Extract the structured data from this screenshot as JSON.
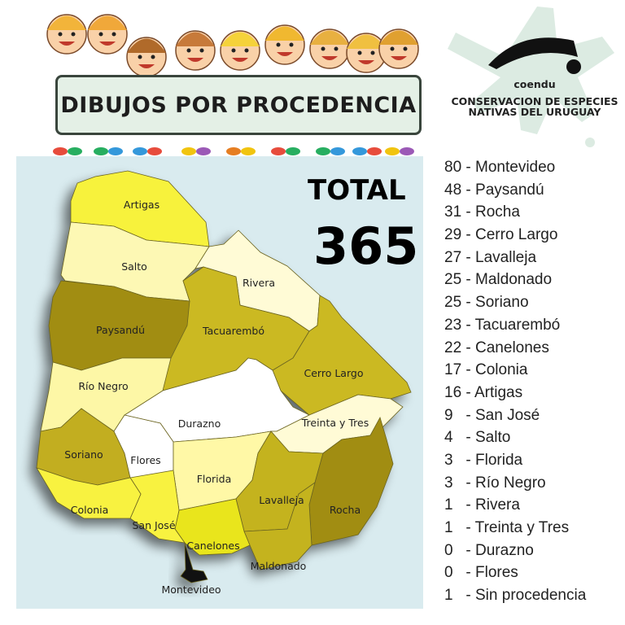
{
  "title": "DIBUJOS POR PROCEDENCIA",
  "logo": {
    "name": "coendu",
    "tagline_line1": "CONSERVACION DE ESPECIES",
    "tagline_line2": "NATIVAS DEL URUGUAY"
  },
  "total": {
    "label": "TOTAL",
    "value": "365"
  },
  "list": [
    "80 - Montevideo",
    "48 - Paysandú",
    "31 - Rocha",
    "29 - Cerro Largo",
    "27 - Lavalleja",
    "25 - Maldonado",
    "25 - Soriano",
    "23 - Tacuarembó",
    "22 - Canelones",
    "17 - Colonia",
    "16 - Artigas",
    "9   - San José",
    "4   - Salto",
    "3   - Florida",
    "3   - Río Negro",
    "1   - Rivera",
    "1   - Treinta y Tres",
    "0   - Durazno",
    "0   - Flores",
    "1   - Sin procedencia"
  ],
  "regions": [
    {
      "name": "Artigas",
      "count": 16,
      "color": "#f7f23c"
    },
    {
      "name": "Salto",
      "count": 4,
      "color": "#fdf8b4"
    },
    {
      "name": "Rivera",
      "count": 1,
      "color": "#fffbd6"
    },
    {
      "name": "Tacuarembó",
      "count": 23,
      "color": "#cbb922"
    },
    {
      "name": "Paysandú",
      "count": 48,
      "color": "#a18d12"
    },
    {
      "name": "Cerro Largo",
      "count": 29,
      "color": "#cbb922"
    },
    {
      "name": "Durazno",
      "count": 0,
      "color": "#ffffff"
    },
    {
      "name": "Río Negro",
      "count": 3,
      "color": "#fdf7a6"
    },
    {
      "name": "Treinta y Tres",
      "count": 1,
      "color": "#fffbd6"
    },
    {
      "name": "Soriano",
      "count": 25,
      "color": "#c2ae20"
    },
    {
      "name": "Flores",
      "count": 0,
      "color": "#ffffff"
    },
    {
      "name": "Florida",
      "count": 3,
      "color": "#fff8a6"
    },
    {
      "name": "Lavalleja",
      "count": 27,
      "color": "#c4b31e"
    },
    {
      "name": "Rocha",
      "count": 31,
      "color": "#a18d12"
    },
    {
      "name": "Maldonado",
      "count": 25,
      "color": "#c4b31e"
    },
    {
      "name": "Canelones",
      "count": 22,
      "color": "#e9e51c"
    },
    {
      "name": "San José",
      "count": 9,
      "color": "#f8f240"
    },
    {
      "name": "Colonia",
      "count": 17,
      "color": "#f8f240"
    },
    {
      "name": "Montevideo",
      "count": 80,
      "color": "#111111"
    }
  ]
}
